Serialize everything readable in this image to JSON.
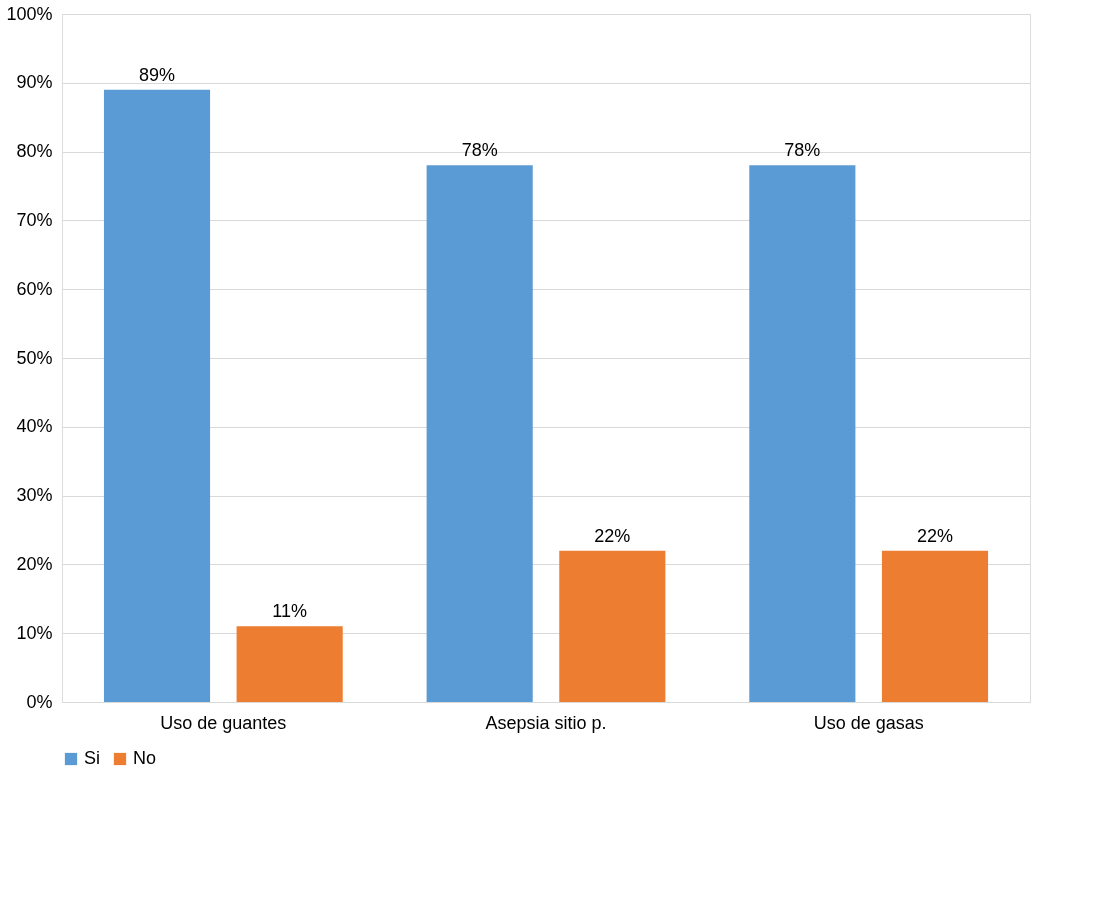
{
  "chart_data": {
    "type": "bar",
    "categories": [
      "Uso de guantes",
      "Asepsia sitio p.",
      "Uso de gasas"
    ],
    "series": [
      {
        "name": "Si",
        "color": "#5b9bd5",
        "values": [
          89,
          78,
          78
        ],
        "value_labels": [
          "89%",
          "78%",
          "78%"
        ]
      },
      {
        "name": "No",
        "color": "#ed7d31",
        "values": [
          11,
          22,
          22
        ],
        "value_labels": [
          "11%",
          "22%",
          "22%"
        ]
      }
    ],
    "ylim": [
      0,
      100
    ],
    "yticks": [
      {
        "value": 0,
        "label": "0%"
      },
      {
        "value": 10,
        "label": "10%"
      },
      {
        "value": 20,
        "label": "20%"
      },
      {
        "value": 30,
        "label": "30%"
      },
      {
        "value": 40,
        "label": "40%"
      },
      {
        "value": 50,
        "label": "50%"
      },
      {
        "value": 60,
        "label": "60%"
      },
      {
        "value": 70,
        "label": "70%"
      },
      {
        "value": 80,
        "label": "80%"
      },
      {
        "value": 90,
        "label": "90%"
      },
      {
        "value": 100,
        "label": "100%"
      }
    ],
    "grid": "y",
    "legend": "bottom"
  }
}
